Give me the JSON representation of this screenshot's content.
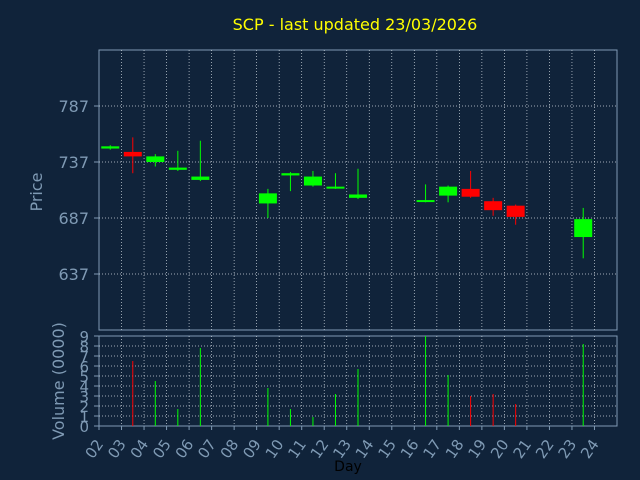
{
  "colors": {
    "background": "#10233a",
    "axis": "#7f9ab4",
    "grid": "#cfd8e0",
    "label": "#7f9ab4",
    "title": "#ffff00",
    "up": "#00ff00",
    "down": "#ff0000"
  },
  "chart_data": [
    {
      "type": "candlestick",
      "title": "SCP - last updated 23/03/2026",
      "ylabel": "Price",
      "ylim": [
        587,
        837
      ],
      "yticks": [
        637,
        687,
        737,
        787
      ],
      "x_categories": [
        "02",
        "03",
        "04",
        "05",
        "06",
        "07",
        "08",
        "09",
        "10",
        "11",
        "12",
        "13",
        "14",
        "15",
        "16",
        "17",
        "18",
        "19",
        "20",
        "21",
        "22",
        "23",
        "24"
      ],
      "candles": [
        {
          "day": "02",
          "open": 749,
          "close": 751,
          "high": 752,
          "low": 748,
          "dir": "up"
        },
        {
          "day": "03",
          "open": 746,
          "close": 742,
          "high": 759,
          "low": 727,
          "dir": "down"
        },
        {
          "day": "04",
          "open": 737,
          "close": 742,
          "high": 744,
          "low": 733,
          "dir": "up"
        },
        {
          "day": "05",
          "open": 730,
          "close": 732,
          "high": 747,
          "low": 729,
          "dir": "up"
        },
        {
          "day": "06",
          "open": 721,
          "close": 724,
          "high": 756,
          "low": 720,
          "dir": "up"
        },
        {
          "day": "09",
          "open": 700,
          "close": 709,
          "high": 713,
          "low": 687,
          "dir": "up"
        },
        {
          "day": "10",
          "open": 725,
          "close": 727,
          "high": 728,
          "low": 711,
          "dir": "up"
        },
        {
          "day": "11",
          "open": 716,
          "close": 724,
          "high": 729,
          "low": 715,
          "dir": "up"
        },
        {
          "day": "12",
          "open": 714,
          "close": 715,
          "high": 727,
          "low": 713,
          "dir": "up"
        },
        {
          "day": "13",
          "open": 705,
          "close": 708,
          "high": 731,
          "low": 704,
          "dir": "up"
        },
        {
          "day": "16",
          "open": 702,
          "close": 703,
          "high": 717,
          "low": 701,
          "dir": "up"
        },
        {
          "day": "17",
          "open": 707,
          "close": 715,
          "high": 716,
          "low": 701,
          "dir": "up"
        },
        {
          "day": "18",
          "open": 713,
          "close": 706,
          "high": 729,
          "low": 705,
          "dir": "down"
        },
        {
          "day": "19",
          "open": 702,
          "close": 694,
          "high": 705,
          "low": 689,
          "dir": "down"
        },
        {
          "day": "20",
          "open": 698,
          "close": 688,
          "high": 699,
          "low": 681,
          "dir": "down"
        },
        {
          "day": "23",
          "open": 670,
          "close": 686,
          "high": 696,
          "low": 651,
          "dir": "up"
        }
      ]
    },
    {
      "type": "bar",
      "ylabel": "Volume (0000)",
      "xlabel": "Day",
      "ylim": [
        0,
        9
      ],
      "yticks": [
        0,
        1,
        2,
        3,
        4,
        5,
        6,
        7,
        8,
        9
      ],
      "x_tick_labels": [
        "02",
        "03",
        "04",
        "05",
        "06",
        "07",
        "08",
        "09",
        "10",
        "11",
        "12",
        "13",
        "14",
        "15",
        "16",
        "17",
        "18",
        "19",
        "20",
        "21",
        "22",
        "23",
        "24"
      ],
      "bars": [
        {
          "day": "03",
          "value": 6.5,
          "dir": "down"
        },
        {
          "day": "04",
          "value": 4.5,
          "dir": "up"
        },
        {
          "day": "05",
          "value": 1.7,
          "dir": "up"
        },
        {
          "day": "06",
          "value": 7.8,
          "dir": "up"
        },
        {
          "day": "09",
          "value": 3.8,
          "dir": "up"
        },
        {
          "day": "10",
          "value": 1.7,
          "dir": "up"
        },
        {
          "day": "11",
          "value": 0.9,
          "dir": "up"
        },
        {
          "day": "12",
          "value": 3.2,
          "dir": "up"
        },
        {
          "day": "13",
          "value": 5.7,
          "dir": "up"
        },
        {
          "day": "16",
          "value": 9.0,
          "dir": "up"
        },
        {
          "day": "17",
          "value": 5.1,
          "dir": "up"
        },
        {
          "day": "18",
          "value": 3.0,
          "dir": "down"
        },
        {
          "day": "19",
          "value": 3.2,
          "dir": "down"
        },
        {
          "day": "20",
          "value": 2.2,
          "dir": "down"
        },
        {
          "day": "23",
          "value": 8.2,
          "dir": "up"
        }
      ]
    }
  ]
}
